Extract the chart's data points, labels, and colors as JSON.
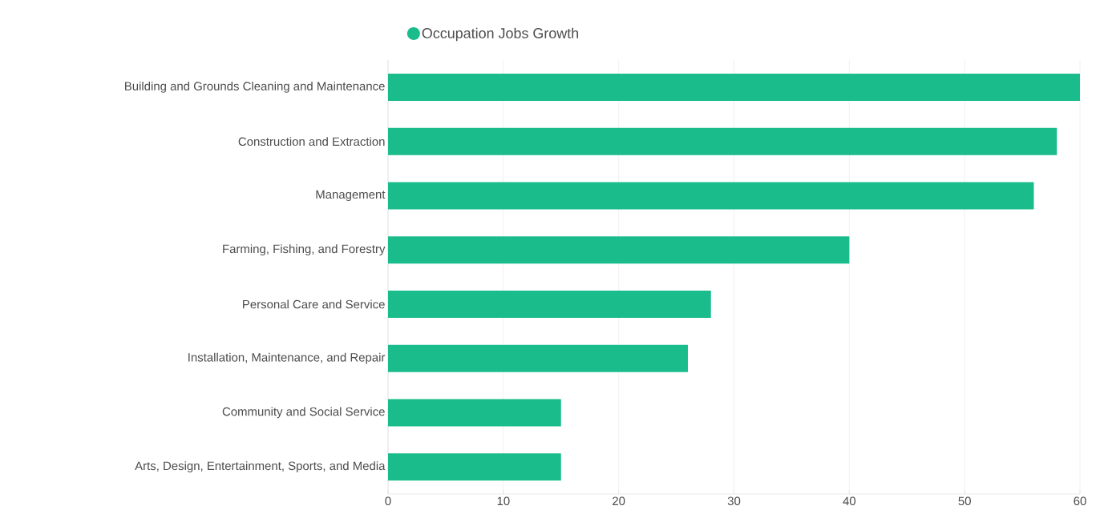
{
  "chart_data": {
    "type": "bar",
    "orientation": "horizontal",
    "categories": [
      "Building and Grounds Cleaning and Maintenance",
      "Construction and Extraction",
      "Management",
      "Farming, Fishing, and Forestry",
      "Personal Care and Service",
      "Installation, Maintenance, and Repair",
      "Community and Social Service",
      "Arts, Design, Entertainment, Sports, and Media"
    ],
    "series": [
      {
        "name": "Occupation Jobs Growth",
        "color": "#1abc8c",
        "values": [
          60,
          58,
          56,
          40,
          28,
          26,
          15,
          15
        ]
      }
    ],
    "xlim": [
      0,
      60
    ],
    "xticks": [
      0,
      10,
      20,
      30,
      40,
      50,
      60
    ],
    "grid": "x",
    "legend": "top"
  }
}
